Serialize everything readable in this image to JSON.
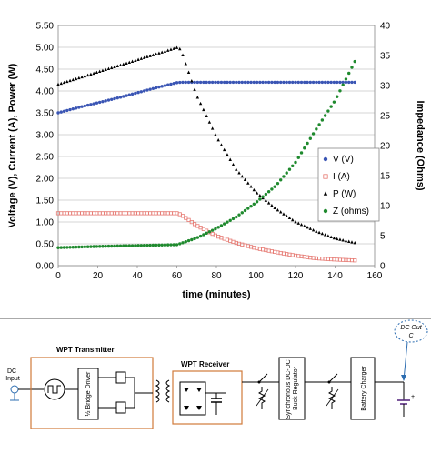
{
  "chart_data": {
    "type": "scatter",
    "title": "",
    "xlabel": "time (minutes)",
    "ylabel_left": "Voltage (V), Current (A), Power (W)",
    "ylabel_right": "Impedance (Ohms)",
    "xlim": [
      0,
      160
    ],
    "ylim_left": [
      0,
      5.5
    ],
    "ylim_right": [
      0,
      40
    ],
    "x_ticks": [
      "0",
      "20",
      "40",
      "60",
      "80",
      "100",
      "120",
      "140",
      "160"
    ],
    "y_left_ticks": [
      "0.00",
      "0.50",
      "1.00",
      "1.50",
      "2.00",
      "2.50",
      "3.00",
      "3.50",
      "4.00",
      "4.50",
      "5.00",
      "5.50"
    ],
    "y_right_ticks": [
      "0",
      "5",
      "10",
      "15",
      "20",
      "25",
      "30",
      "35",
      "40"
    ],
    "grid": "horizontal",
    "legend_position": "right",
    "series": [
      {
        "name": "V (V)",
        "axis": "left",
        "color": "#3a55b4",
        "marker": "circle",
        "x": [
          0,
          10,
          20,
          30,
          40,
          50,
          60,
          62,
          80,
          100,
          120,
          140,
          150
        ],
        "y": [
          3.5,
          3.62,
          3.73,
          3.84,
          3.96,
          4.08,
          4.19,
          4.2,
          4.2,
          4.2,
          4.2,
          4.2,
          4.2
        ]
      },
      {
        "name": "I (A)",
        "axis": "left",
        "color": "#e67a73",
        "marker": "square",
        "x": [
          0,
          20,
          40,
          60,
          62,
          70,
          80,
          90,
          100,
          110,
          120,
          130,
          140,
          150
        ],
        "y": [
          1.2,
          1.2,
          1.2,
          1.2,
          1.17,
          0.92,
          0.68,
          0.52,
          0.4,
          0.31,
          0.23,
          0.17,
          0.14,
          0.12
        ]
      },
      {
        "name": "P (W)",
        "axis": "left",
        "color": "#000000",
        "marker": "triangle",
        "x": [
          0,
          10,
          20,
          30,
          40,
          50,
          60,
          62,
          70,
          80,
          90,
          100,
          110,
          120,
          130,
          140,
          150
        ],
        "y": [
          4.15,
          4.29,
          4.43,
          4.57,
          4.71,
          4.85,
          4.99,
          4.95,
          3.9,
          2.95,
          2.2,
          1.68,
          1.3,
          1.0,
          0.79,
          0.62,
          0.52
        ]
      },
      {
        "name": "Z (ohms)",
        "axis": "right",
        "color": "#1f8a2e",
        "marker": "circle",
        "x": [
          0,
          20,
          40,
          60,
          62,
          70,
          80,
          90,
          100,
          110,
          120,
          130,
          140,
          150
        ],
        "y": [
          3.0,
          3.2,
          3.35,
          3.5,
          3.7,
          4.6,
          6.2,
          8.1,
          10.5,
          13.3,
          17.2,
          22.5,
          27.5,
          34.0
        ]
      }
    ]
  },
  "diagram": {
    "dc_input_label": "DC\nInput",
    "transmitter_label": "WPT Transmitter",
    "bridge_driver_label": "½ Bridge Driver",
    "receiver_label": "WPT Receiver",
    "buck_label": "Synchronous DC-DC\nBuck Regulator",
    "charger_label": "Battery Charger",
    "dc_out_label": "DC Out",
    "dc_out_sub": "C"
  }
}
